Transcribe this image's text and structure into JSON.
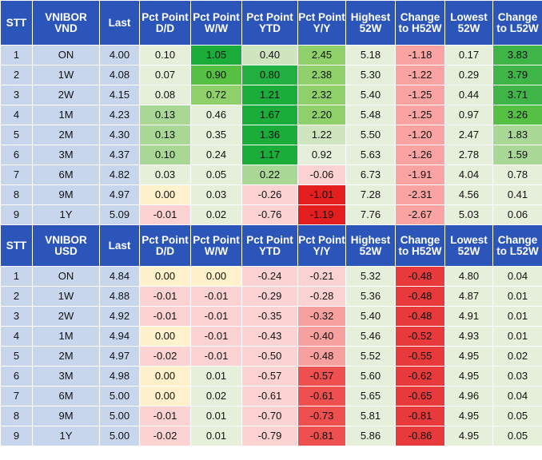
{
  "colors": {
    "header_bg": "#2b55b8",
    "index_bg": "#c7d6ed",
    "neutral_bg": "#e6efd9"
  },
  "tables": [
    {
      "id": "vnd",
      "headers": [
        "STT",
        "VNIBOR VND",
        "Last",
        "Pct Point D/D",
        "Pct Point W/W",
        "Pct Point YTD",
        "Pct Point Y/Y",
        "Highest 52W",
        "Change to H52W",
        "Lowest 52W",
        "Change to L52W"
      ],
      "rows": [
        {
          "stt": "1",
          "tenor": "ON",
          "last": "4.00",
          "cells": [
            {
              "v": "0.10",
              "bg": "#e6efd9"
            },
            {
              "v": "1.05",
              "bg": "#1aad3a"
            },
            {
              "v": "0.40",
              "bg": "#cfe5c0"
            },
            {
              "v": "2.45",
              "bg": "#8fd06a"
            },
            {
              "v": "5.18",
              "bg": "#e6efd9"
            },
            {
              "v": "-1.18",
              "bg": "#f9a3a3"
            },
            {
              "v": "0.17",
              "bg": "#e6efd9"
            },
            {
              "v": "3.83",
              "bg": "#3fb547"
            }
          ]
        },
        {
          "stt": "2",
          "tenor": "1W",
          "last": "4.08",
          "cells": [
            {
              "v": "0.07",
              "bg": "#e6efd9"
            },
            {
              "v": "0.90",
              "bg": "#55c043"
            },
            {
              "v": "0.80",
              "bg": "#22b040"
            },
            {
              "v": "2.38",
              "bg": "#8fd06a"
            },
            {
              "v": "5.30",
              "bg": "#e6efd9"
            },
            {
              "v": "-1.22",
              "bg": "#f9a3a3"
            },
            {
              "v": "0.29",
              "bg": "#e6efd9"
            },
            {
              "v": "3.79",
              "bg": "#3fb547"
            }
          ]
        },
        {
          "stt": "3",
          "tenor": "2W",
          "last": "4.15",
          "cells": [
            {
              "v": "0.08",
              "bg": "#e6efd9"
            },
            {
              "v": "0.72",
              "bg": "#8fd06a"
            },
            {
              "v": "1.21",
              "bg": "#1aad3a"
            },
            {
              "v": "2.32",
              "bg": "#8fd06a"
            },
            {
              "v": "5.40",
              "bg": "#e6efd9"
            },
            {
              "v": "-1.25",
              "bg": "#f9a3a3"
            },
            {
              "v": "0.44",
              "bg": "#e6efd9"
            },
            {
              "v": "3.71",
              "bg": "#3fb547"
            }
          ]
        },
        {
          "stt": "4",
          "tenor": "1M",
          "last": "4.23",
          "cells": [
            {
              "v": "0.13",
              "bg": "#a9d795"
            },
            {
              "v": "0.46",
              "bg": "#e6efd9"
            },
            {
              "v": "1.67",
              "bg": "#1aad3a"
            },
            {
              "v": "2.20",
              "bg": "#8fd06a"
            },
            {
              "v": "5.48",
              "bg": "#e6efd9"
            },
            {
              "v": "-1.25",
              "bg": "#f9a3a3"
            },
            {
              "v": "0.97",
              "bg": "#e6efd9"
            },
            {
              "v": "3.26",
              "bg": "#55c043"
            }
          ]
        },
        {
          "stt": "5",
          "tenor": "2M",
          "last": "4.30",
          "cells": [
            {
              "v": "0.13",
              "bg": "#a9d795"
            },
            {
              "v": "0.35",
              "bg": "#e6efd9"
            },
            {
              "v": "1.36",
              "bg": "#1aad3a"
            },
            {
              "v": "1.22",
              "bg": "#cfe5c0"
            },
            {
              "v": "5.50",
              "bg": "#e6efd9"
            },
            {
              "v": "-1.20",
              "bg": "#f9a3a3"
            },
            {
              "v": "2.47",
              "bg": "#e6efd9"
            },
            {
              "v": "1.83",
              "bg": "#a9d795"
            }
          ]
        },
        {
          "stt": "6",
          "tenor": "3M",
          "last": "4.37",
          "cells": [
            {
              "v": "0.10",
              "bg": "#a9d795"
            },
            {
              "v": "0.24",
              "bg": "#e6efd9"
            },
            {
              "v": "1.17",
              "bg": "#1aad3a"
            },
            {
              "v": "0.92",
              "bg": "#e6efd9"
            },
            {
              "v": "5.63",
              "bg": "#e6efd9"
            },
            {
              "v": "-1.26",
              "bg": "#f9a3a3"
            },
            {
              "v": "2.78",
              "bg": "#e6efd9"
            },
            {
              "v": "1.59",
              "bg": "#a9d795"
            }
          ]
        },
        {
          "stt": "7",
          "tenor": "6M",
          "last": "4.82",
          "cells": [
            {
              "v": "0.03",
              "bg": "#e6efd9"
            },
            {
              "v": "0.05",
              "bg": "#e6efd9"
            },
            {
              "v": "0.22",
              "bg": "#a9d795"
            },
            {
              "v": "-0.06",
              "bg": "#fcd2d2"
            },
            {
              "v": "6.73",
              "bg": "#e6efd9"
            },
            {
              "v": "-1.91",
              "bg": "#f9a3a3"
            },
            {
              "v": "4.04",
              "bg": "#e6efd9"
            },
            {
              "v": "0.78",
              "bg": "#e6efd9"
            }
          ]
        },
        {
          "stt": "8",
          "tenor": "9M",
          "last": "4.97",
          "cells": [
            {
              "v": "0.00",
              "bg": "#fff1cc"
            },
            {
              "v": "0.03",
              "bg": "#e6efd9"
            },
            {
              "v": "-0.26",
              "bg": "#fcd2d2"
            },
            {
              "v": "-1.01",
              "bg": "#e41e1e"
            },
            {
              "v": "7.28",
              "bg": "#e6efd9"
            },
            {
              "v": "-2.31",
              "bg": "#f9a3a3"
            },
            {
              "v": "4.56",
              "bg": "#e6efd9"
            },
            {
              "v": "0.41",
              "bg": "#e6efd9"
            }
          ]
        },
        {
          "stt": "9",
          "tenor": "1Y",
          "last": "5.09",
          "cells": [
            {
              "v": "-0.01",
              "bg": "#fcd2d2"
            },
            {
              "v": "0.02",
              "bg": "#e6efd9"
            },
            {
              "v": "-0.76",
              "bg": "#fcd2d2"
            },
            {
              "v": "-1.19",
              "bg": "#e41e1e"
            },
            {
              "v": "7.76",
              "bg": "#e6efd9"
            },
            {
              "v": "-2.67",
              "bg": "#f9a3a3"
            },
            {
              "v": "5.03",
              "bg": "#e6efd9"
            },
            {
              "v": "0.06",
              "bg": "#e6efd9"
            }
          ]
        }
      ]
    },
    {
      "id": "usd",
      "headers": [
        "STT",
        "VNIBOR USD",
        "Last",
        "Pct Point D/D",
        "Pct Point W/W",
        "Pct Point YTD",
        "Pct Point Y/Y",
        "Highest 52W",
        "Change to H52W",
        "Lowest 52W",
        "Change to L52W"
      ],
      "rows": [
        {
          "stt": "1",
          "tenor": "ON",
          "last": "4.84",
          "cells": [
            {
              "v": "0.00",
              "bg": "#fff1cc"
            },
            {
              "v": "0.00",
              "bg": "#fff1cc"
            },
            {
              "v": "-0.24",
              "bg": "#fcd2d2"
            },
            {
              "v": "-0.21",
              "bg": "#fcd2d2"
            },
            {
              "v": "5.32",
              "bg": "#e6efd9"
            },
            {
              "v": "-0.48",
              "bg": "#e83a3a"
            },
            {
              "v": "4.80",
              "bg": "#e6efd9"
            },
            {
              "v": "0.04",
              "bg": "#e6efd9"
            }
          ]
        },
        {
          "stt": "2",
          "tenor": "1W",
          "last": "4.88",
          "cells": [
            {
              "v": "-0.01",
              "bg": "#fcd2d2"
            },
            {
              "v": "-0.01",
              "bg": "#fcd2d2"
            },
            {
              "v": "-0.29",
              "bg": "#fcd2d2"
            },
            {
              "v": "-0.28",
              "bg": "#fcd2d2"
            },
            {
              "v": "5.36",
              "bg": "#e6efd9"
            },
            {
              "v": "-0.48",
              "bg": "#e83a3a"
            },
            {
              "v": "4.87",
              "bg": "#e6efd9"
            },
            {
              "v": "0.01",
              "bg": "#e6efd9"
            }
          ]
        },
        {
          "stt": "3",
          "tenor": "2W",
          "last": "4.92",
          "cells": [
            {
              "v": "-0.01",
              "bg": "#fcd2d2"
            },
            {
              "v": "-0.01",
              "bg": "#fcd2d2"
            },
            {
              "v": "-0.35",
              "bg": "#fcd2d2"
            },
            {
              "v": "-0.32",
              "bg": "#f7a0a0"
            },
            {
              "v": "5.40",
              "bg": "#e6efd9"
            },
            {
              "v": "-0.48",
              "bg": "#e83a3a"
            },
            {
              "v": "4.91",
              "bg": "#e6efd9"
            },
            {
              "v": "0.01",
              "bg": "#e6efd9"
            }
          ]
        },
        {
          "stt": "4",
          "tenor": "1M",
          "last": "4.94",
          "cells": [
            {
              "v": "0.00",
              "bg": "#fff1cc"
            },
            {
              "v": "-0.01",
              "bg": "#fcd2d2"
            },
            {
              "v": "-0.43",
              "bg": "#fcd2d2"
            },
            {
              "v": "-0.40",
              "bg": "#f7a0a0"
            },
            {
              "v": "5.46",
              "bg": "#e6efd9"
            },
            {
              "v": "-0.52",
              "bg": "#e83a3a"
            },
            {
              "v": "4.93",
              "bg": "#e6efd9"
            },
            {
              "v": "0.01",
              "bg": "#e6efd9"
            }
          ]
        },
        {
          "stt": "5",
          "tenor": "2M",
          "last": "4.97",
          "cells": [
            {
              "v": "-0.02",
              "bg": "#fcd2d2"
            },
            {
              "v": "-0.01",
              "bg": "#fcd2d2"
            },
            {
              "v": "-0.50",
              "bg": "#fcd2d2"
            },
            {
              "v": "-0.48",
              "bg": "#f7a0a0"
            },
            {
              "v": "5.52",
              "bg": "#e6efd9"
            },
            {
              "v": "-0.55",
              "bg": "#e83a3a"
            },
            {
              "v": "4.95",
              "bg": "#e6efd9"
            },
            {
              "v": "0.02",
              "bg": "#e6efd9"
            }
          ]
        },
        {
          "stt": "6",
          "tenor": "3M",
          "last": "4.98",
          "cells": [
            {
              "v": "0.00",
              "bg": "#fff1cc"
            },
            {
              "v": "0.01",
              "bg": "#e6efd9"
            },
            {
              "v": "-0.57",
              "bg": "#fcd2d2"
            },
            {
              "v": "-0.57",
              "bg": "#ee5050"
            },
            {
              "v": "5.60",
              "bg": "#e6efd9"
            },
            {
              "v": "-0.62",
              "bg": "#e83a3a"
            },
            {
              "v": "4.95",
              "bg": "#e6efd9"
            },
            {
              "v": "0.03",
              "bg": "#e6efd9"
            }
          ]
        },
        {
          "stt": "7",
          "tenor": "6M",
          "last": "5.00",
          "cells": [
            {
              "v": "0.00",
              "bg": "#fff1cc"
            },
            {
              "v": "0.02",
              "bg": "#e6efd9"
            },
            {
              "v": "-0.61",
              "bg": "#fcd2d2"
            },
            {
              "v": "-0.61",
              "bg": "#ee5050"
            },
            {
              "v": "5.65",
              "bg": "#e6efd9"
            },
            {
              "v": "-0.65",
              "bg": "#e83a3a"
            },
            {
              "v": "4.96",
              "bg": "#e6efd9"
            },
            {
              "v": "0.04",
              "bg": "#e6efd9"
            }
          ]
        },
        {
          "stt": "8",
          "tenor": "9M",
          "last": "5.00",
          "cells": [
            {
              "v": "-0.01",
              "bg": "#fcd2d2"
            },
            {
              "v": "0.01",
              "bg": "#e6efd9"
            },
            {
              "v": "-0.70",
              "bg": "#fcd2d2"
            },
            {
              "v": "-0.73",
              "bg": "#ee5050"
            },
            {
              "v": "5.81",
              "bg": "#e6efd9"
            },
            {
              "v": "-0.81",
              "bg": "#e83a3a"
            },
            {
              "v": "4.95",
              "bg": "#e6efd9"
            },
            {
              "v": "0.05",
              "bg": "#e6efd9"
            }
          ]
        },
        {
          "stt": "9",
          "tenor": "1Y",
          "last": "5.00",
          "cells": [
            {
              "v": "-0.02",
              "bg": "#fcd2d2"
            },
            {
              "v": "0.01",
              "bg": "#e6efd9"
            },
            {
              "v": "-0.79",
              "bg": "#fcd2d2"
            },
            {
              "v": "-0.81",
              "bg": "#ee5050"
            },
            {
              "v": "5.86",
              "bg": "#e6efd9"
            },
            {
              "v": "-0.86",
              "bg": "#e83a3a"
            },
            {
              "v": "4.95",
              "bg": "#e6efd9"
            },
            {
              "v": "0.05",
              "bg": "#e6efd9"
            }
          ]
        }
      ]
    }
  ]
}
